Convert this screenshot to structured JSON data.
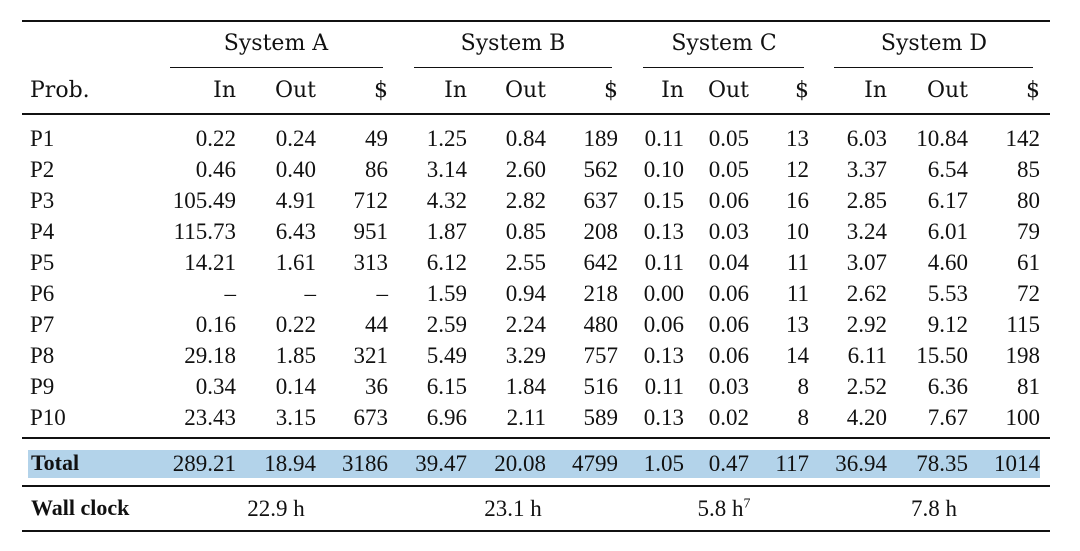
{
  "systems": [
    {
      "name": "System A"
    },
    {
      "name": "System B"
    },
    {
      "name": "System C"
    },
    {
      "name": "System D"
    }
  ],
  "header": {
    "prob": "Prob.",
    "in": "In",
    "out": "Out",
    "cost": "$"
  },
  "rows": [
    {
      "prob": "P1",
      "cells": [
        "0.22",
        "0.24",
        "49",
        "1.25",
        "0.84",
        "189",
        "0.11",
        "0.05",
        "13",
        "6.03",
        "10.84",
        "142"
      ]
    },
    {
      "prob": "P2",
      "cells": [
        "0.46",
        "0.40",
        "86",
        "3.14",
        "2.60",
        "562",
        "0.10",
        "0.05",
        "12",
        "3.37",
        "6.54",
        "85"
      ]
    },
    {
      "prob": "P3",
      "cells": [
        "105.49",
        "4.91",
        "712",
        "4.32",
        "2.82",
        "637",
        "0.15",
        "0.06",
        "16",
        "2.85",
        "6.17",
        "80"
      ]
    },
    {
      "prob": "P4",
      "cells": [
        "115.73",
        "6.43",
        "951",
        "1.87",
        "0.85",
        "208",
        "0.13",
        "0.03",
        "10",
        "3.24",
        "6.01",
        "79"
      ]
    },
    {
      "prob": "P5",
      "cells": [
        "14.21",
        "1.61",
        "313",
        "6.12",
        "2.55",
        "642",
        "0.11",
        "0.04",
        "11",
        "3.07",
        "4.60",
        "61"
      ]
    },
    {
      "prob": "P6",
      "cells": [
        "–",
        "–",
        "–",
        "1.59",
        "0.94",
        "218",
        "0.00",
        "0.06",
        "11",
        "2.62",
        "5.53",
        "72"
      ]
    },
    {
      "prob": "P7",
      "cells": [
        "0.16",
        "0.22",
        "44",
        "2.59",
        "2.24",
        "480",
        "0.06",
        "0.06",
        "13",
        "2.92",
        "9.12",
        "115"
      ]
    },
    {
      "prob": "P8",
      "cells": [
        "29.18",
        "1.85",
        "321",
        "5.49",
        "3.29",
        "757",
        "0.13",
        "0.06",
        "14",
        "6.11",
        "15.50",
        "198"
      ]
    },
    {
      "prob": "P9",
      "cells": [
        "0.34",
        "0.14",
        "36",
        "6.15",
        "1.84",
        "516",
        "0.11",
        "0.03",
        "8",
        "2.52",
        "6.36",
        "81"
      ]
    },
    {
      "prob": "P10",
      "cells": [
        "23.43",
        "3.15",
        "673",
        "6.96",
        "2.11",
        "589",
        "0.13",
        "0.02",
        "8",
        "4.20",
        "7.67",
        "100"
      ]
    }
  ],
  "total": {
    "label": "Total",
    "cells": [
      "289.21",
      "18.94",
      "3186",
      "39.47",
      "20.08",
      "4799",
      "1.05",
      "0.47",
      "117",
      "36.94",
      "78.35",
      "1014"
    ]
  },
  "wall_clock": {
    "label": "Wall clock",
    "values": [
      {
        "value": "22.9 h",
        "sup": ""
      },
      {
        "value": "23.1 h",
        "sup": ""
      },
      {
        "value": "5.8 h",
        "sup": "7"
      },
      {
        "value": "7.8 h",
        "sup": ""
      }
    ]
  },
  "colors": {
    "total_highlight": "#b3d3ea",
    "text": "#111111"
  }
}
